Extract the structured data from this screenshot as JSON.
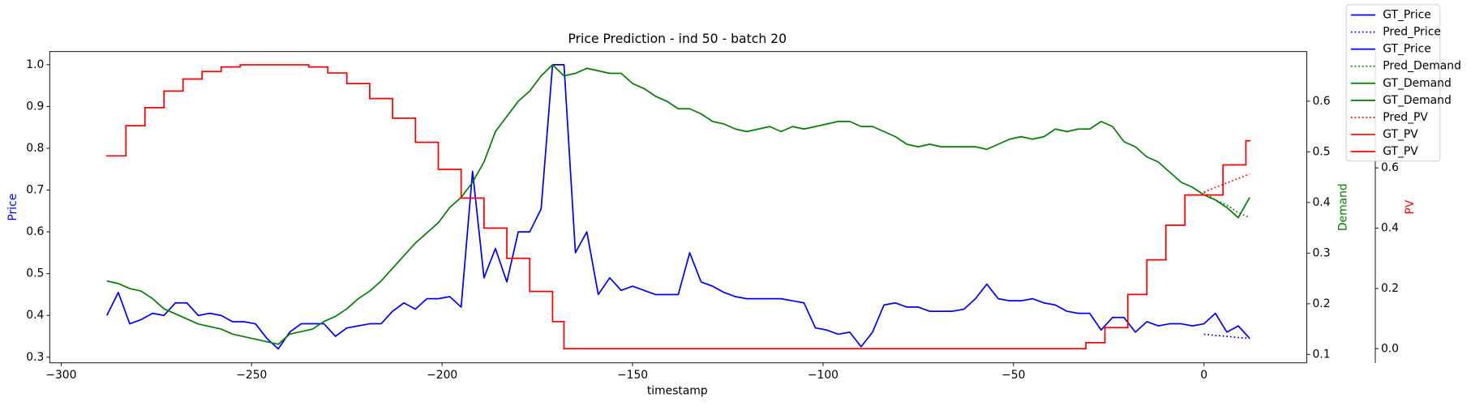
{
  "chart_data": {
    "type": "line",
    "title": "Price Prediction - ind 50 - batch 20",
    "xlabel": "timestamp",
    "ylabel": "Price",
    "y2label": "Demand",
    "y3label": "PV",
    "xlim": [
      -303,
      27
    ],
    "xticks": [
      {
        "value": -300,
        "label": "−300"
      },
      {
        "value": -250,
        "label": "−250"
      },
      {
        "value": -200,
        "label": "−200"
      },
      {
        "value": -150,
        "label": "−150"
      },
      {
        "value": -100,
        "label": "−100"
      },
      {
        "value": -50,
        "label": "−50"
      },
      0
    ],
    "ylim": [
      0.2865,
      1.0314
    ],
    "yticks": [
      0.3,
      0.4,
      0.5,
      0.6,
      0.7,
      0.8,
      0.9,
      {
        "value": 1,
        "label": "1.0"
      }
    ],
    "y2lim": [
      0.0833,
      0.698
    ],
    "y2ticks": [
      0.1,
      0.2,
      0.3,
      0.4,
      0.5,
      0.6
    ],
    "y3lim": [
      -0.047,
      0.986
    ],
    "y3ticks": [
      {
        "value": 0,
        "label": "0.0"
      },
      0.2,
      0.4,
      0.6
    ],
    "grid": false,
    "legend_position": "upper right",
    "x": [
      -288,
      -285,
      -282,
      -279,
      -276,
      -273,
      -270,
      -267,
      -264,
      -261,
      -258,
      -255,
      -252,
      -249,
      -246,
      -243,
      -240,
      -237,
      -234,
      -231,
      -228,
      -225,
      -222,
      -219,
      -216,
      -213,
      -210,
      -207,
      -204,
      -201,
      -198,
      -195,
      -192,
      -189,
      -186,
      -183,
      -180,
      -177,
      -174,
      -171,
      -168,
      -165,
      -162,
      -159,
      -156,
      -153,
      -150,
      -147,
      -144,
      -141,
      -138,
      -135,
      -132,
      -129,
      -126,
      -123,
      -120,
      -117,
      -114,
      -111,
      -108,
      -105,
      -102,
      -99,
      -96,
      -93,
      -90,
      -87,
      -84,
      -81,
      -78,
      -75,
      -72,
      -69,
      -66,
      -63,
      -60,
      -57,
      -54,
      -51,
      -48,
      -45,
      -42,
      -39,
      -36,
      -33,
      -30,
      -27,
      -24,
      -21,
      -18,
      -15,
      -12,
      -9,
      -6,
      -3,
      0,
      3,
      6,
      9,
      12
    ],
    "series": [
      {
        "name": "GT_Price",
        "color": "#0000ff",
        "linestyle": "solid",
        "axis": "y",
        "values": [
          0.4,
          0.455,
          0.38,
          0.39,
          0.405,
          0.4,
          0.43,
          0.43,
          0.4,
          0.405,
          0.4,
          0.385,
          0.385,
          0.38,
          0.345,
          0.32,
          0.36,
          0.38,
          0.38,
          0.38,
          0.35,
          0.37,
          0.375,
          0.38,
          0.38,
          0.41,
          0.43,
          0.415,
          0.44,
          0.44,
          0.445,
          0.42,
          0.745,
          0.49,
          0.56,
          0.48,
          0.6,
          0.6,
          0.655,
          1.0,
          1.0,
          0.55,
          0.6,
          0.45,
          0.49,
          0.46,
          0.47,
          0.46,
          0.45,
          0.45,
          0.45,
          0.55,
          0.48,
          0.47,
          0.455,
          0.445,
          0.44,
          0.44,
          0.44,
          0.44,
          0.435,
          0.43,
          0.37,
          0.365,
          0.355,
          0.36,
          0.325,
          0.36,
          0.425,
          0.43,
          0.42,
          0.42,
          0.41,
          0.41,
          0.41,
          0.415,
          0.44,
          0.475,
          0.44,
          0.435,
          0.435,
          0.44,
          0.43,
          0.425,
          0.41,
          0.405,
          0.405,
          0.365,
          0.395,
          0.395,
          0.36,
          0.385,
          0.375,
          0.38,
          0.38,
          0.375,
          0.38,
          0.405,
          0.36,
          0.375,
          0.345
        ]
      },
      {
        "name": "Pred_Price",
        "color": "#0000ff",
        "linestyle": "dotted",
        "axis": "y",
        "x": [
          0,
          3,
          6,
          9,
          12
        ],
        "values": [
          0.355,
          0.352,
          0.35,
          0.347,
          0.345
        ]
      },
      {
        "name": "Pred_Demand",
        "color": "#008000",
        "linestyle": "dotted",
        "axis": "y2",
        "x": [
          0,
          3,
          6,
          9,
          12
        ],
        "values": [
          0.42,
          0.405,
          0.395,
          0.38,
          0.37
        ]
      },
      {
        "name": "GT_Demand",
        "color": "#008000",
        "linestyle": "solid",
        "axis": "y2",
        "values": [
          0.245,
          0.24,
          0.23,
          0.225,
          0.21,
          0.19,
          0.18,
          0.17,
          0.16,
          0.155,
          0.15,
          0.14,
          0.135,
          0.13,
          0.125,
          0.12,
          0.14,
          0.145,
          0.15,
          0.165,
          0.175,
          0.19,
          0.21,
          0.225,
          0.245,
          0.27,
          0.295,
          0.32,
          0.34,
          0.36,
          0.39,
          0.41,
          0.44,
          0.48,
          0.54,
          0.57,
          0.6,
          0.62,
          0.65,
          0.672,
          0.65,
          0.655,
          0.665,
          0.66,
          0.655,
          0.655,
          0.635,
          0.625,
          0.61,
          0.6,
          0.585,
          0.585,
          0.575,
          0.56,
          0.555,
          0.545,
          0.54,
          0.545,
          0.55,
          0.54,
          0.55,
          0.545,
          0.55,
          0.555,
          0.56,
          0.56,
          0.55,
          0.55,
          0.54,
          0.53,
          0.515,
          0.51,
          0.515,
          0.51,
          0.51,
          0.51,
          0.51,
          0.505,
          0.515,
          0.525,
          0.53,
          0.525,
          0.53,
          0.545,
          0.54,
          0.545,
          0.545,
          0.56,
          0.55,
          0.52,
          0.51,
          0.49,
          0.48,
          0.46,
          0.44,
          0.43,
          0.415,
          0.405,
          0.39,
          0.37,
          0.41
        ]
      },
      {
        "name": "Pred_PV",
        "color": "#ff0000",
        "linestyle": "dotted",
        "axis": "y3",
        "x": [
          0,
          3,
          6,
          9,
          12
        ],
        "values": [
          0.52,
          0.535,
          0.55,
          0.565,
          0.58
        ]
      },
      {
        "name": "GT_PV",
        "color": "#ff0000",
        "linestyle": "solid",
        "axis": "y3",
        "drawstyle": "steps-post",
        "x": [
          -288,
          -283,
          -278,
          -273,
          -268,
          -263,
          -258,
          -253,
          -235,
          -230,
          -225,
          -219,
          -213,
          -207,
          -201,
          -195,
          -189,
          -183,
          -177,
          -171,
          -168,
          -31,
          -26,
          -20,
          -15,
          -10,
          -5,
          5,
          11,
          12
        ],
        "values": [
          0.64,
          0.74,
          0.8,
          0.855,
          0.895,
          0.92,
          0.935,
          0.942,
          0.935,
          0.915,
          0.88,
          0.83,
          0.765,
          0.685,
          0.595,
          0.5,
          0.4,
          0.3,
          0.19,
          0.09,
          0,
          0.02,
          0.07,
          0.18,
          0.295,
          0.41,
          0.51,
          0.61,
          0.69,
          0.69
        ]
      }
    ],
    "legend": [
      "GT_Price",
      "Pred_Price",
      "GT_Price",
      "Pred_Demand",
      "GT_Demand",
      "GT_Demand",
      "Pred_PV",
      "GT_PV",
      "GT_PV"
    ]
  }
}
